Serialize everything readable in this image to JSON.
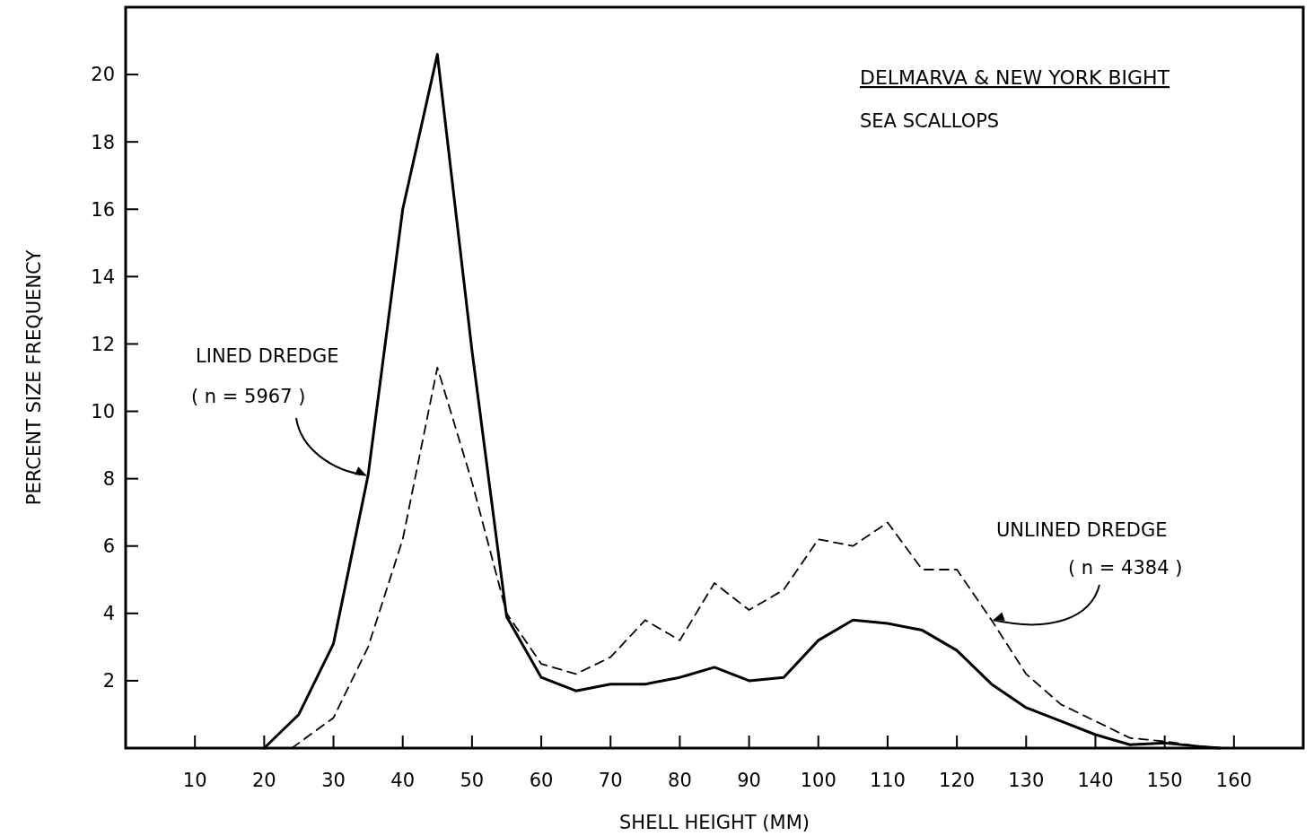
{
  "chart_data": {
    "type": "line",
    "title": "DELMARVA & NEW YORK BIGHT",
    "subtitle": "SEA SCALLOPS",
    "xlabel": "SHELL HEIGHT (MM)",
    "ylabel": "PERCENT SIZE FREQUENCY",
    "xlim": [
      0,
      170
    ],
    "xticks": [
      10,
      20,
      30,
      40,
      50,
      60,
      70,
      80,
      90,
      100,
      110,
      120,
      130,
      140,
      150,
      160
    ],
    "ylim": [
      0,
      22
    ],
    "yticks": [
      2,
      4,
      6,
      8,
      10,
      12,
      14,
      16,
      18,
      20
    ],
    "annotations": [
      {
        "text": "( n = 5967 )",
        "x": 35,
        "y": 8.1
      },
      {
        "text": "( n = 4384 )",
        "x": 125,
        "y": 3.8
      }
    ],
    "series": [
      {
        "name": "LINED DREDGE",
        "color": "#000000",
        "line_style": "solid",
        "x": [
          20,
          25,
          30,
          35,
          40,
          45,
          50,
          55,
          60,
          65,
          70,
          75,
          80,
          85,
          90,
          95,
          100,
          105,
          110,
          115,
          120,
          125,
          130,
          135,
          140,
          145,
          150,
          155,
          158
        ],
        "values": [
          0,
          1.0,
          3.1,
          8.1,
          16.0,
          20.6,
          11.8,
          3.9,
          2.1,
          1.7,
          1.9,
          1.9,
          2.1,
          2.4,
          2.0,
          2.1,
          3.2,
          3.8,
          3.7,
          3.5,
          2.9,
          1.9,
          1.2,
          0.8,
          0.4,
          0.1,
          0.15,
          0.05,
          0
        ]
      },
      {
        "name": "UNLINED DREDGE",
        "color": "#000000",
        "line_style": "dashed",
        "x": [
          24,
          30,
          35,
          40,
          45,
          50,
          55,
          60,
          65,
          70,
          75,
          80,
          85,
          90,
          95,
          100,
          105,
          110,
          115,
          120,
          125,
          130,
          135,
          140,
          145,
          150,
          155,
          158
        ],
        "values": [
          0,
          0.9,
          3.0,
          6.2,
          11.3,
          7.9,
          4.0,
          2.5,
          2.2,
          2.7,
          3.8,
          3.2,
          4.9,
          4.1,
          4.7,
          6.2,
          6.0,
          6.7,
          5.3,
          5.3,
          3.8,
          2.2,
          1.3,
          0.8,
          0.3,
          0.2,
          0.05,
          0
        ]
      }
    ]
  }
}
